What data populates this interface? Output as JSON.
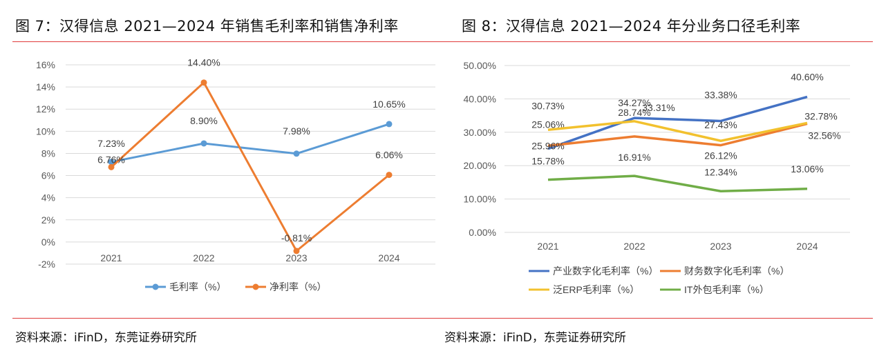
{
  "figure7": {
    "title": "图 7：汉得信息 2021—2024 年销售毛利率和销售净利率",
    "source": "资料来源：iFinD，东莞证券研究所"
  },
  "figure8": {
    "title": "图 8：汉得信息 2021—2024 年分业务口径毛利率",
    "source": "资料来源：iFinD，东莞证券研究所"
  },
  "chart_data": [
    {
      "type": "line",
      "categories": [
        "2021",
        "2022",
        "2023",
        "2024"
      ],
      "ylim": [
        -2,
        16
      ],
      "yticks": [
        "-2%",
        "0%",
        "2%",
        "4%",
        "6%",
        "8%",
        "10%",
        "12%",
        "14%",
        "16%"
      ],
      "ytick_values": [
        -2,
        0,
        2,
        4,
        6,
        8,
        10,
        12,
        14,
        16
      ],
      "grid": true,
      "legend": "bottom",
      "series": [
        {
          "name": "毛利率（%）",
          "values": [
            7.23,
            8.9,
            7.98,
            10.65
          ],
          "labels": [
            "7.23%",
            "8.90%",
            "7.98%",
            "10.65%"
          ],
          "color": "#5b9bd5"
        },
        {
          "name": "净利率（%）",
          "values": [
            6.76,
            14.4,
            -0.81,
            6.06
          ],
          "labels": [
            "6.76%",
            "14.40%",
            "-0.81%",
            "6.06%"
          ],
          "color": "#ed7d31"
        }
      ]
    },
    {
      "type": "line",
      "categories": [
        "2021",
        "2022",
        "2023",
        "2024"
      ],
      "ylim": [
        0,
        50
      ],
      "yticks": [
        "0.00%",
        "10.00%",
        "20.00%",
        "30.00%",
        "40.00%",
        "50.00%"
      ],
      "ytick_values": [
        0,
        10,
        20,
        30,
        40,
        50
      ],
      "grid": true,
      "legend": "bottom",
      "series": [
        {
          "name": "产业数字化毛利率（%）",
          "values": [
            25.06,
            34.27,
            33.38,
            40.6
          ],
          "labels": [
            "25.06%",
            "34.27%",
            "33.38%",
            "40.60%"
          ],
          "color": "#4472c4"
        },
        {
          "name": "财务数字化毛利率（%）",
          "values": [
            25.96,
            28.74,
            26.12,
            32.56
          ],
          "labels": [
            "25.96%",
            "28.74%",
            "26.12%",
            "32.56%"
          ],
          "color": "#ed7d31"
        },
        {
          "name": "泛ERP毛利率（%）",
          "values": [
            30.73,
            33.31,
            27.43,
            32.78
          ],
          "labels": [
            "30.73%",
            "33.31%",
            "27.43%",
            "32.78%"
          ],
          "color": "#f2c12e"
        },
        {
          "name": "IT外包毛利率（%）",
          "values": [
            15.78,
            16.91,
            12.34,
            13.06
          ],
          "labels": [
            "15.78%",
            "16.91%",
            "12.34%",
            "13.06%"
          ],
          "color": "#70ad47"
        }
      ]
    }
  ]
}
